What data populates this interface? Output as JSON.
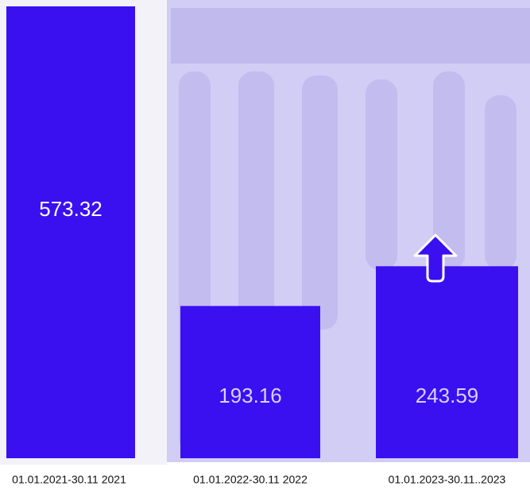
{
  "chart_data": {
    "type": "bar",
    "categories": [
      "01.01.2021-30.11 2021",
      "01.01.2022-30.11 2022",
      "01.01.2023-30.11..2023"
    ],
    "values": [
      573.32,
      193.16,
      243.59
    ],
    "color": "#3a10f0"
  }
}
